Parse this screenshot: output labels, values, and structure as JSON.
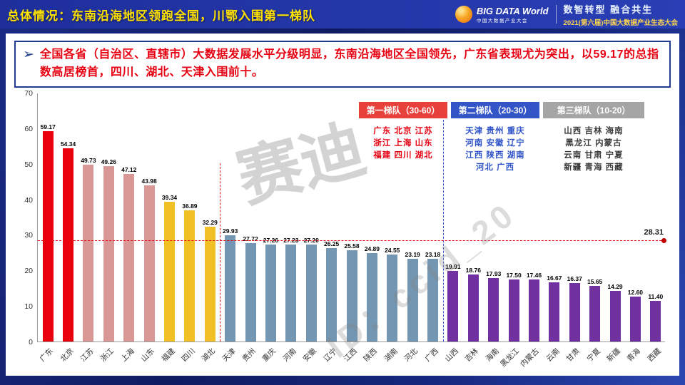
{
  "header": {
    "title": "总体情况：东南沿海地区领跑全国，川鄂入围第一梯队",
    "logo_title": "BIG DATA World",
    "logo_subtitle": "中国大数据产业大会",
    "slogan": "数智转型  融合共生",
    "conference": "2021(第六届)中国大数据产业生态大会"
  },
  "summary": {
    "bullet": "➢",
    "text": "全国各省（自治区、直辖市）大数据发展水平分级明显，东南沿海地区全国领先，广东省表现尤为突出，以59.17的总指数高居榜首，四川、湖北、天津入围前十。"
  },
  "legend": {
    "tiers": [
      {
        "title": "第一梯队（30-60）",
        "header_color": "#E8413C",
        "text_color": "#E60012",
        "rows": [
          "广东 北京 江苏",
          "浙江 上海 山东",
          "福建 四川 湖北"
        ]
      },
      {
        "title": "第二梯队（20-30）",
        "header_color": "#3355C8",
        "text_color": "#2F54C9",
        "rows": [
          "天津 贵州 重庆",
          "河南 安徽 辽宁",
          "江西 陕西 湖南",
          "河北 广西"
        ]
      },
      {
        "title": "第三梯队（10-20）",
        "header_color": "#A5A5A5",
        "text_color": "#3a3a3a",
        "rows": [
          "山西 吉林 海南",
          "黑龙江 内蒙古",
          "云南 甘肃 宁夏",
          "新疆 青海 西藏"
        ]
      }
    ]
  },
  "chart_data": {
    "type": "bar",
    "title": "全国各省大数据发展总指数",
    "categories": [
      "广东",
      "北京",
      "江苏",
      "浙江",
      "上海",
      "山东",
      "福建",
      "四川",
      "湖北",
      "天津",
      "贵州",
      "重庆",
      "河南",
      "安徽",
      "辽宁",
      "江西",
      "陕西",
      "湖南",
      "河北",
      "广西",
      "山西",
      "吉林",
      "海南",
      "黑龙江",
      "内蒙古",
      "云南",
      "甘肃",
      "宁夏",
      "新疆",
      "青海",
      "西藏"
    ],
    "values": [
      59.17,
      54.34,
      49.73,
      49.26,
      47.12,
      43.98,
      39.34,
      36.89,
      32.29,
      29.93,
      27.72,
      27.26,
      27.23,
      27.2,
      26.25,
      25.58,
      24.89,
      24.55,
      23.19,
      23.18,
      19.91,
      18.76,
      17.93,
      17.5,
      17.46,
      16.67,
      16.37,
      15.65,
      14.29,
      12.6,
      11.4
    ],
    "bar_colors": [
      "#E8000D",
      "#E8000D",
      "#D99795",
      "#D99795",
      "#D99795",
      "#D99795",
      "#F0C024",
      "#F0C024",
      "#F0C024",
      "#7396B2",
      "#7396B2",
      "#7396B2",
      "#7396B2",
      "#7396B2",
      "#7396B2",
      "#7396B2",
      "#7396B2",
      "#7396B2",
      "#7396B2",
      "#7396B2",
      "#7030A0",
      "#7030A0",
      "#7030A0",
      "#7030A0",
      "#7030A0",
      "#7030A0",
      "#7030A0",
      "#7030A0",
      "#7030A0",
      "#7030A0",
      "#7030A0"
    ],
    "ylim": [
      0,
      70
    ],
    "yticks": [
      0,
      10,
      20,
      30,
      40,
      50,
      60,
      70
    ],
    "average": 28.31,
    "average_label": "28.31",
    "dividers": [
      {
        "after_index": 8,
        "color": "#E8000D",
        "top": 0.28
      },
      {
        "after_index": 19,
        "color": "#3355C8",
        "top": 0.05
      }
    ],
    "legend_position": "top-right",
    "grid": false
  },
  "watermarks": [
    "赛迪",
    "ID：ccid_20"
  ]
}
